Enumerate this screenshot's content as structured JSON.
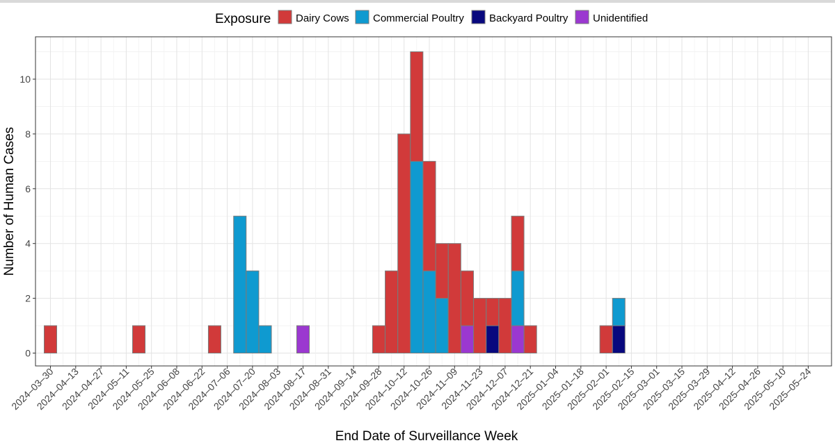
{
  "chart_data": {
    "type": "bar",
    "stacked": true,
    "xlabel": "End Date of Surveillance Week",
    "ylabel": "Number of Human Cases",
    "ylim": [
      0,
      11.5
    ],
    "yticks": [
      0,
      2,
      4,
      6,
      8,
      10
    ],
    "grid": true,
    "legend": {
      "title": "Exposure",
      "position": "top"
    },
    "x_tick_labels": [
      "2024–03–30",
      "2024–04–13",
      "2024–04–27",
      "2024–05–11",
      "2024–05–25",
      "2024–06–08",
      "2024–06–22",
      "2024–07–06",
      "2024–07–20",
      "2024–08–03",
      "2024–08–17",
      "2024–08–31",
      "2024–09–14",
      "2024–09–28",
      "2024–10–12",
      "2024–10–26",
      "2024–11–09",
      "2024–11–23",
      "2024–12–07",
      "2024–12–21",
      "2025–01–04",
      "2025–01–18",
      "2025–02–01",
      "2025–02–15",
      "2025–03–01",
      "2025–03–15",
      "2025–03–29",
      "2025–04–12",
      "2025–04–26",
      "2025–05–10",
      "2025–05–24"
    ],
    "categories": [
      "2024-03-30",
      "2024-04-06",
      "2024-04-13",
      "2024-04-20",
      "2024-04-27",
      "2024-05-04",
      "2024-05-11",
      "2024-05-18",
      "2024-05-25",
      "2024-06-01",
      "2024-06-08",
      "2024-06-15",
      "2024-06-22",
      "2024-06-29",
      "2024-07-06",
      "2024-07-13",
      "2024-07-20",
      "2024-07-27",
      "2024-08-03",
      "2024-08-10",
      "2024-08-17",
      "2024-08-24",
      "2024-08-31",
      "2024-09-07",
      "2024-09-14",
      "2024-09-21",
      "2024-09-28",
      "2024-10-05",
      "2024-10-12",
      "2024-10-19",
      "2024-10-26",
      "2024-11-02",
      "2024-11-09",
      "2024-11-16",
      "2024-11-23",
      "2024-11-30",
      "2024-12-07",
      "2024-12-14",
      "2024-12-21",
      "2024-12-28",
      "2025-01-04",
      "2025-01-11",
      "2025-01-18",
      "2025-01-25",
      "2025-02-01",
      "2025-02-08",
      "2025-02-15",
      "2025-02-22",
      "2025-03-01",
      "2025-03-08",
      "2025-03-15",
      "2025-03-22",
      "2025-03-29",
      "2025-04-05",
      "2025-04-12",
      "2025-04-19",
      "2025-04-26",
      "2025-05-03",
      "2025-05-10",
      "2025-05-17",
      "2025-05-24"
    ],
    "series": [
      {
        "name": "Dairy Cows",
        "color": "#d13a3a",
        "values": [
          1,
          0,
          0,
          0,
          0,
          0,
          0,
          1,
          0,
          0,
          0,
          0,
          0,
          1,
          0,
          0,
          0,
          0,
          0,
          0,
          0,
          0,
          0,
          0,
          0,
          0,
          1,
          3,
          8,
          4,
          4,
          2,
          4,
          2,
          2,
          1,
          2,
          2,
          1,
          0,
          0,
          0,
          0,
          0,
          1,
          0,
          0,
          0,
          0,
          0,
          0,
          0,
          0,
          0,
          0,
          0,
          0,
          0,
          0,
          0,
          0
        ]
      },
      {
        "name": "Commercial Poultry",
        "color": "#0f9ad0",
        "values": [
          0,
          0,
          0,
          0,
          0,
          0,
          0,
          0,
          0,
          0,
          0,
          0,
          0,
          0,
          0,
          5,
          3,
          1,
          0,
          0,
          0,
          0,
          0,
          0,
          0,
          0,
          0,
          0,
          0,
          7,
          3,
          2,
          0,
          0,
          0,
          0,
          0,
          2,
          0,
          0,
          0,
          0,
          0,
          0,
          0,
          1,
          0,
          0,
          0,
          0,
          0,
          0,
          0,
          0,
          0,
          0,
          0,
          0,
          0,
          0,
          0
        ]
      },
      {
        "name": "Backyard Poultry",
        "color": "#08087e",
        "values": [
          0,
          0,
          0,
          0,
          0,
          0,
          0,
          0,
          0,
          0,
          0,
          0,
          0,
          0,
          0,
          0,
          0,
          0,
          0,
          0,
          0,
          0,
          0,
          0,
          0,
          0,
          0,
          0,
          0,
          0,
          0,
          0,
          0,
          0,
          0,
          1,
          0,
          0,
          0,
          0,
          0,
          0,
          0,
          0,
          0,
          1,
          0,
          0,
          0,
          0,
          0,
          0,
          0,
          0,
          0,
          0,
          0,
          0,
          0,
          0,
          0
        ]
      },
      {
        "name": "Unidentified",
        "color": "#9b38d0",
        "values": [
          0,
          0,
          0,
          0,
          0,
          0,
          0,
          0,
          0,
          0,
          0,
          0,
          0,
          0,
          0,
          0,
          0,
          0,
          0,
          0,
          1,
          0,
          0,
          0,
          0,
          0,
          0,
          0,
          0,
          0,
          0,
          0,
          0,
          1,
          0,
          0,
          0,
          1,
          0,
          0,
          0,
          0,
          0,
          0,
          0,
          0,
          0,
          0,
          0,
          0,
          0,
          0,
          0,
          0,
          0,
          0,
          0,
          0,
          0,
          0,
          0
        ]
      }
    ]
  }
}
